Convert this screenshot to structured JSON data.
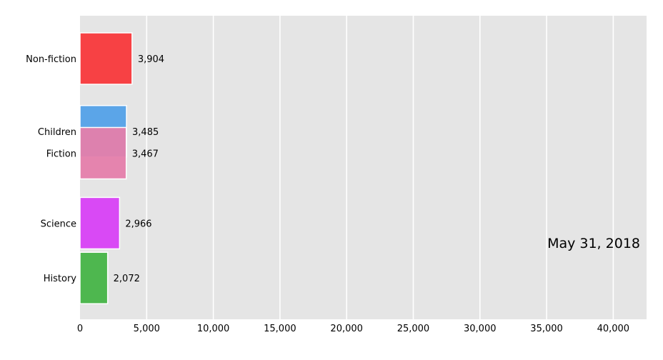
{
  "chart_data": {
    "type": "bar",
    "orientation": "horizontal",
    "title": "",
    "xlabel": "",
    "ylabel": "",
    "xlim": [
      0,
      42500
    ],
    "grid": true,
    "legend": "none",
    "date_label": "May 31, 2018",
    "x_ticks": [
      0,
      5000,
      10000,
      15000,
      20000,
      25000,
      30000,
      35000,
      40000
    ],
    "x_tick_labels": [
      "0",
      "5,000",
      "10,000",
      "15,000",
      "20,000",
      "25,000",
      "30,000",
      "35,000",
      "40,000"
    ],
    "categories": [
      "Non-fiction",
      "Children",
      "Fiction",
      "Science",
      "History"
    ],
    "values": [
      3904,
      3485,
      3467,
      2966,
      2072
    ],
    "value_labels": [
      "3,904",
      "3,485",
      "3,467",
      "2,966",
      "2,072"
    ],
    "colors": [
      "#f8383b",
      "#53a1e8",
      "#e57eab",
      "#d840f5",
      "#46b447"
    ],
    "rank_positions": [
      0.0,
      1.06,
      1.38,
      2.4,
      3.2
    ]
  }
}
